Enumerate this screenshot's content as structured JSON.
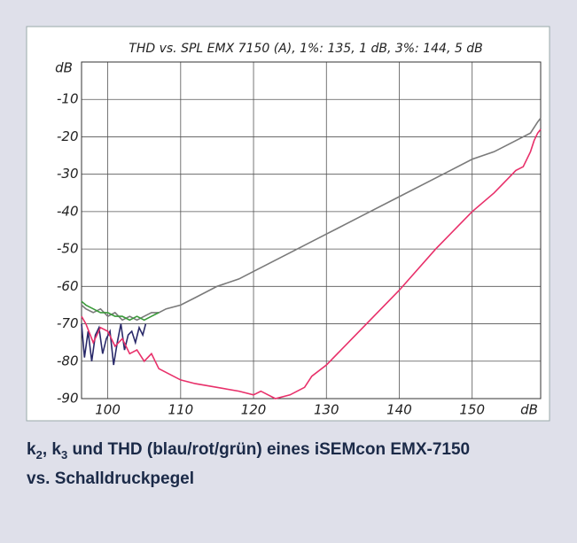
{
  "chart_data": {
    "type": "line",
    "title": "THD vs. SPL EMX 7150 (A),  1%: 135, 1 dB,  3%: 144, 5 dB",
    "x_label": "dB",
    "y_label": "dB",
    "xlim": [
      96.4,
      159.4
    ],
    "xticks": [
      100,
      110,
      120,
      130,
      140,
      150
    ],
    "ylim": [
      -90,
      0
    ],
    "yticks": [
      -10,
      -20,
      -30,
      -40,
      -50,
      -60,
      -70,
      -80,
      -90
    ],
    "grid": true,
    "series": [
      {
        "color": "#7a7a7a",
        "x": [
          96.4,
          97,
          98,
          99,
          100,
          101,
          102,
          103,
          104,
          105,
          106,
          107,
          108,
          110,
          112,
          115,
          118,
          120,
          125,
          130,
          135,
          140,
          145,
          150,
          153,
          155,
          157,
          158,
          159,
          159.4
        ],
        "values": [
          -65,
          -66,
          -67,
          -66,
          -68,
          -67,
          -69,
          -68,
          -69,
          -68,
          -67,
          -67,
          -66,
          -65,
          -63,
          -60,
          -58,
          -56,
          -51,
          -46,
          -41,
          -36,
          -31,
          -26,
          -24,
          -22,
          -20,
          -19,
          -16,
          -15
        ]
      },
      {
        "color": "#3a9a3a",
        "x": [
          96.4,
          97,
          98,
          99,
          100,
          101,
          102,
          103,
          104,
          105,
          106,
          107
        ],
        "values": [
          -64,
          -65,
          -66,
          -67,
          -67,
          -68,
          -68,
          -69,
          -68,
          -69,
          -68,
          -67
        ]
      },
      {
        "color": "#2a2a6a",
        "x": [
          96.4,
          96.8,
          97.3,
          97.8,
          98.3,
          98.8,
          99.3,
          99.8,
          100.3,
          100.8,
          101.3,
          101.8,
          102.3,
          102.8,
          103.3,
          103.8,
          104.3,
          104.8,
          105.2
        ],
        "values": [
          -70,
          -79,
          -72,
          -80,
          -73,
          -71,
          -78,
          -74,
          -72,
          -81,
          -75,
          -70,
          -77,
          -73,
          -72,
          -75,
          -71,
          -73,
          -70
        ]
      },
      {
        "color": "#e8306a",
        "x": [
          96.4,
          97,
          98,
          99,
          100,
          101,
          102,
          103,
          104,
          105,
          106,
          107,
          108,
          110,
          112,
          115,
          118,
          120,
          121,
          123,
          125,
          127,
          128,
          130,
          135,
          140,
          145,
          150,
          153,
          155,
          156,
          157,
          158,
          158.5,
          159,
          159.4
        ],
        "values": [
          -68,
          -70,
          -75,
          -71,
          -72,
          -76,
          -74,
          -78,
          -77,
          -80,
          -78,
          -82,
          -83,
          -85,
          -86,
          -87,
          -88,
          -89,
          -88,
          -90,
          -89,
          -87,
          -84,
          -81,
          -71,
          -61,
          -50,
          -40,
          -35,
          -31,
          -29,
          -28,
          -24,
          -21,
          -19,
          -18
        ]
      }
    ],
    "caption": [
      "k",
      "2",
      ", k",
      "3",
      " und THD (blau/rot/grün) eines iSEMcon EMX-7150",
      "vs. Schalldruckpegel"
    ]
  }
}
